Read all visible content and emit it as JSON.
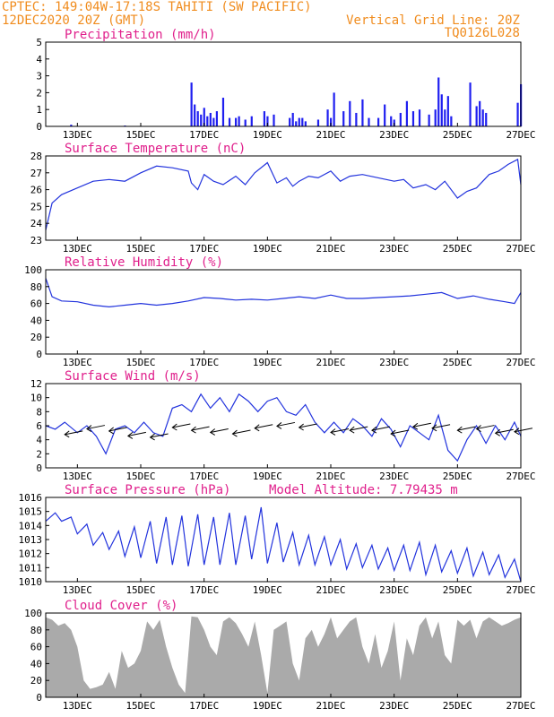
{
  "header": {
    "line1_left": "CPTEC:   149:04W-17:18S  TAHITI (SW PACIFIC)",
    "line2_left": "12DEC2020 20Z (GMT)",
    "line1_right": "Vertical Grid Line: 20Z",
    "line2_right": "TQ0126L028"
  },
  "colors": {
    "header": "#f08c1e",
    "title": "#e0208c",
    "line": "#2233dd",
    "bar": "#1f1ff0",
    "cloud": "#aaaaaa"
  },
  "x_ticks": [
    "13DEC",
    "15DEC",
    "17DEC",
    "19DEC",
    "21DEC",
    "23DEC",
    "25DEC",
    "27DEC"
  ],
  "chart_data": [
    {
      "type": "bar",
      "title": "Precipitation (mm/h)",
      "ylim": [
        0,
        5
      ],
      "yticks": [
        "0",
        "1",
        "2",
        "3",
        "4",
        "5"
      ],
      "x_range_days": [
        12.0,
        27.0
      ],
      "x": [
        12.8,
        14.5,
        16.6,
        16.7,
        16.8,
        16.9,
        17.0,
        17.1,
        17.2,
        17.3,
        17.4,
        17.6,
        17.8,
        18.0,
        18.1,
        18.3,
        18.5,
        18.9,
        19.0,
        19.2,
        19.7,
        19.8,
        19.9,
        20.0,
        20.1,
        20.2,
        20.6,
        20.9,
        21.0,
        21.1,
        21.4,
        21.6,
        21.8,
        22.0,
        22.2,
        22.5,
        22.7,
        22.9,
        23.0,
        23.2,
        23.4,
        23.6,
        23.8,
        24.1,
        24.3,
        24.4,
        24.5,
        24.6,
        24.7,
        24.8,
        25.4,
        25.6,
        25.7,
        25.8,
        25.9,
        26.9,
        27.0
      ],
      "values": [
        0.1,
        0.05,
        2.6,
        1.3,
        0.9,
        0.7,
        1.1,
        0.6,
        0.8,
        0.5,
        0.9,
        1.7,
        0.5,
        0.5,
        0.6,
        0.4,
        0.6,
        0.9,
        0.6,
        0.7,
        0.5,
        0.8,
        0.3,
        0.5,
        0.5,
        0.3,
        0.4,
        1.0,
        0.5,
        2.0,
        0.9,
        1.5,
        0.8,
        1.6,
        0.5,
        0.5,
        1.3,
        0.6,
        0.4,
        0.8,
        1.5,
        0.9,
        1.0,
        0.7,
        1.0,
        2.9,
        1.9,
        1.0,
        1.8,
        0.6,
        2.6,
        1.2,
        1.5,
        1.0,
        0.8,
        1.4,
        2.5
      ],
      "series": [
        {
          "name": "Precipitation"
        }
      ]
    },
    {
      "type": "line",
      "title": "Surface Temperature (nC)",
      "ylim": [
        23,
        28
      ],
      "yticks": [
        "23",
        "24",
        "25",
        "26",
        "27",
        "28"
      ],
      "x": [
        12.0,
        12.2,
        12.5,
        13.0,
        13.5,
        14.0,
        14.5,
        15.0,
        15.5,
        16.0,
        16.5,
        16.6,
        16.8,
        17.0,
        17.3,
        17.6,
        18.0,
        18.3,
        18.6,
        19.0,
        19.3,
        19.6,
        19.8,
        20.0,
        20.3,
        20.6,
        21.0,
        21.3,
        21.6,
        22.0,
        22.5,
        23.0,
        23.3,
        23.6,
        24.0,
        24.3,
        24.6,
        25.0,
        25.3,
        25.6,
        26.0,
        26.3,
        26.6,
        26.9,
        27.0
      ],
      "values": [
        23.6,
        25.2,
        25.7,
        26.1,
        26.5,
        26.6,
        26.5,
        27.0,
        27.4,
        27.3,
        27.1,
        26.4,
        26.0,
        26.9,
        26.5,
        26.3,
        26.8,
        26.3,
        27.0,
        27.6,
        26.4,
        26.7,
        26.2,
        26.5,
        26.8,
        26.7,
        27.1,
        26.5,
        26.8,
        26.9,
        26.7,
        26.5,
        26.6,
        26.1,
        26.3,
        26.0,
        26.5,
        25.5,
        25.9,
        26.1,
        26.9,
        27.1,
        27.5,
        27.8,
        26.3
      ],
      "series": [
        {
          "name": "Surface Temperature"
        }
      ]
    },
    {
      "type": "line",
      "title": "Relative Humidity (%)",
      "ylim": [
        0,
        100
      ],
      "yticks": [
        "0",
        "20",
        "40",
        "60",
        "80",
        "100"
      ],
      "x": [
        12.0,
        12.2,
        12.5,
        13.0,
        13.5,
        14.0,
        14.5,
        15.0,
        15.5,
        16.0,
        16.5,
        17.0,
        17.5,
        18.0,
        18.5,
        19.0,
        19.5,
        20.0,
        20.5,
        21.0,
        21.5,
        22.0,
        22.5,
        23.0,
        23.5,
        24.0,
        24.5,
        25.0,
        25.5,
        26.0,
        26.5,
        26.8,
        27.0
      ],
      "values": [
        90,
        68,
        63,
        62,
        58,
        56,
        58,
        60,
        58,
        60,
        63,
        67,
        66,
        64,
        65,
        64,
        66,
        68,
        66,
        70,
        66,
        66,
        67,
        68,
        69,
        71,
        73,
        66,
        69,
        65,
        62,
        60,
        73
      ],
      "series": [
        {
          "name": "Relative Humidity"
        }
      ]
    },
    {
      "type": "line",
      "title": "Surface Wind (m/s)",
      "ylim": [
        0,
        12
      ],
      "yticks": [
        "0",
        "2",
        "4",
        "6",
        "8",
        "10",
        "12"
      ],
      "x": [
        12.0,
        12.3,
        12.6,
        13.0,
        13.3,
        13.6,
        13.9,
        14.2,
        14.5,
        14.8,
        15.1,
        15.4,
        15.7,
        16.0,
        16.3,
        16.6,
        16.9,
        17.2,
        17.5,
        17.8,
        18.1,
        18.4,
        18.7,
        19.0,
        19.3,
        19.6,
        19.9,
        20.2,
        20.5,
        20.8,
        21.1,
        21.4,
        21.7,
        22.0,
        22.3,
        22.6,
        22.9,
        23.2,
        23.5,
        23.8,
        24.1,
        24.4,
        24.7,
        25.0,
        25.3,
        25.6,
        25.9,
        26.2,
        26.5,
        26.8,
        27.0
      ],
      "values": [
        6.0,
        5.5,
        6.5,
        5.0,
        6.0,
        4.5,
        2.0,
        5.5,
        6.0,
        5.0,
        6.5,
        5.0,
        4.5,
        8.5,
        9.0,
        8.0,
        10.5,
        8.5,
        10.0,
        8.0,
        10.5,
        9.5,
        8.0,
        9.5,
        10.0,
        8.0,
        7.5,
        9.0,
        6.5,
        5.0,
        6.5,
        5.0,
        7.0,
        6.0,
        4.5,
        7.0,
        5.5,
        3.0,
        6.0,
        5.0,
        4.0,
        7.5,
        2.5,
        1.0,
        4.0,
        6.0,
        3.5,
        6.0,
        4.0,
        6.5,
        4.5
      ],
      "wind_arrows_x": [
        12.6,
        13.3,
        14.0,
        14.6,
        15.3,
        16.0,
        16.6,
        17.2,
        17.9,
        18.6,
        19.3,
        20.0,
        21.0,
        21.6,
        22.3,
        22.9,
        23.6,
        24.2,
        25.0,
        25.6,
        26.2,
        26.8
      ],
      "wind_arrows_y": [
        5.0,
        5.8,
        5.5,
        4.8,
        4.6,
        6.0,
        5.6,
        5.3,
        5.1,
        5.9,
        6.2,
        6.0,
        5.3,
        5.6,
        5.6,
        5.1,
        6.1,
        5.9,
        5.6,
        5.8,
        5.2,
        5.4
      ],
      "series": [
        {
          "name": "Surface Wind"
        }
      ]
    },
    {
      "type": "line",
      "title": "Surface Pressure (hPa)",
      "subtitle": "Model Altitude: 7.79435 m",
      "ylim": [
        1010,
        1016
      ],
      "yticks": [
        "1010",
        "1011",
        "1012",
        "1013",
        "1014",
        "1015",
        "1016"
      ],
      "x": [
        12.0,
        12.3,
        12.5,
        12.8,
        13.0,
        13.3,
        13.5,
        13.8,
        14.0,
        14.3,
        14.5,
        14.8,
        15.0,
        15.3,
        15.5,
        15.8,
        16.0,
        16.3,
        16.5,
        16.8,
        17.0,
        17.3,
        17.5,
        17.8,
        18.0,
        18.3,
        18.5,
        18.8,
        19.0,
        19.3,
        19.5,
        19.8,
        20.0,
        20.3,
        20.5,
        20.8,
        21.0,
        21.3,
        21.5,
        21.8,
        22.0,
        22.3,
        22.5,
        22.8,
        23.0,
        23.3,
        23.5,
        23.8,
        24.0,
        24.3,
        24.5,
        24.8,
        25.0,
        25.3,
        25.5,
        25.8,
        26.0,
        26.3,
        26.5,
        26.8,
        27.0
      ],
      "values": [
        1014.3,
        1014.9,
        1014.3,
        1014.6,
        1013.4,
        1014.1,
        1012.6,
        1013.5,
        1012.3,
        1013.6,
        1011.8,
        1013.9,
        1011.7,
        1014.3,
        1011.3,
        1014.6,
        1011.2,
        1014.7,
        1011.1,
        1014.8,
        1011.2,
        1014.6,
        1011.2,
        1014.9,
        1011.2,
        1014.7,
        1011.6,
        1015.3,
        1011.3,
        1014.2,
        1011.4,
        1013.5,
        1011.2,
        1013.3,
        1011.2,
        1013.2,
        1011.2,
        1013.0,
        1010.9,
        1012.7,
        1011.0,
        1012.6,
        1010.9,
        1012.4,
        1010.8,
        1012.6,
        1010.8,
        1012.8,
        1010.5,
        1012.6,
        1010.7,
        1012.2,
        1010.6,
        1012.4,
        1010.4,
        1012.1,
        1010.5,
        1011.9,
        1010.3,
        1011.6,
        1010.0
      ],
      "series": [
        {
          "name": "Surface Pressure"
        }
      ]
    },
    {
      "type": "area",
      "title": "Cloud Cover (%)",
      "ylim": [
        0,
        100
      ],
      "yticks": [
        "0",
        "20",
        "40",
        "60",
        "80",
        "100"
      ],
      "x": [
        12.0,
        12.2,
        12.4,
        12.6,
        12.8,
        13.0,
        13.2,
        13.4,
        13.6,
        13.8,
        14.0,
        14.2,
        14.4,
        14.6,
        14.8,
        15.0,
        15.2,
        15.4,
        15.6,
        15.8,
        16.0,
        16.2,
        16.4,
        16.6,
        16.8,
        17.0,
        17.2,
        17.4,
        17.6,
        17.8,
        18.0,
        18.2,
        18.4,
        18.6,
        18.8,
        19.0,
        19.2,
        19.4,
        19.6,
        19.8,
        20.0,
        20.2,
        20.4,
        20.6,
        20.8,
        21.0,
        21.2,
        21.4,
        21.6,
        21.8,
        22.0,
        22.2,
        22.4,
        22.6,
        22.8,
        23.0,
        23.2,
        23.4,
        23.6,
        23.8,
        24.0,
        24.2,
        24.4,
        24.6,
        24.8,
        25.0,
        25.2,
        25.4,
        25.6,
        25.8,
        26.0,
        26.2,
        26.4,
        26.6,
        26.8,
        27.0
      ],
      "values": [
        95,
        92,
        85,
        88,
        80,
        60,
        20,
        10,
        12,
        15,
        30,
        10,
        55,
        35,
        40,
        55,
        90,
        80,
        92,
        60,
        35,
        15,
        5,
        96,
        95,
        80,
        60,
        50,
        90,
        95,
        88,
        75,
        60,
        90,
        50,
        5,
        80,
        85,
        90,
        40,
        20,
        70,
        80,
        60,
        75,
        95,
        70,
        80,
        90,
        95,
        60,
        40,
        75,
        35,
        55,
        90,
        20,
        70,
        50,
        85,
        95,
        70,
        90,
        50,
        40,
        92,
        85,
        92,
        70,
        90,
        95,
        90,
        85,
        88,
        92,
        95
      ],
      "series": [
        {
          "name": "Cloud Cover"
        }
      ]
    }
  ]
}
